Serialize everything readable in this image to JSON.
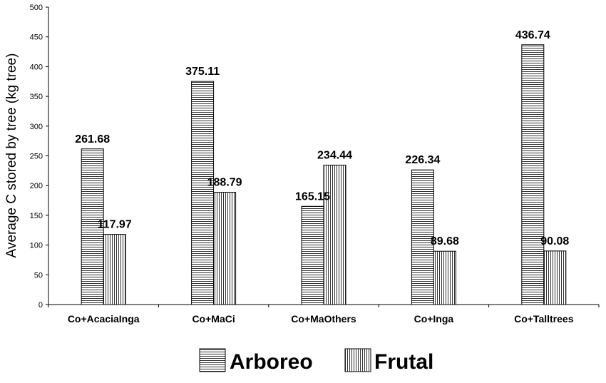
{
  "chart_data": {
    "type": "bar",
    "categories": [
      "Co+AcaciaInga",
      "Co+MaCi",
      "Co+MaOthers",
      "Co+Inga",
      "Co+Talltrees"
    ],
    "series": [
      {
        "name": "Arboreo",
        "values": [
          261.68,
          375.11,
          165.15,
          226.34,
          436.74
        ],
        "pattern": "horizontal-lines"
      },
      {
        "name": "Frutal",
        "values": [
          117.97,
          188.79,
          234.44,
          89.68,
          90.08
        ],
        "pattern": "vertical-lines"
      }
    ],
    "data_labels": [
      [
        "261.68",
        "375.11",
        "165.15",
        "226.34",
        "436.74"
      ],
      [
        "117.97",
        "188.79",
        "234.44",
        "89.68",
        "90.08"
      ]
    ],
    "title": "",
    "xlabel": "",
    "ylabel": "Average C stored by tree (kg tree)",
    "ylim": [
      0,
      500
    ],
    "yticks": [
      "0",
      "50",
      "100",
      "150",
      "200",
      "250",
      "300",
      "350",
      "400",
      "450",
      "500"
    ],
    "grid": false,
    "legend_position": "bottom",
    "colors": {
      "bar_fill": "#ffffff",
      "bar_stroke": "#000000",
      "pattern_stroke": "#000000"
    }
  }
}
